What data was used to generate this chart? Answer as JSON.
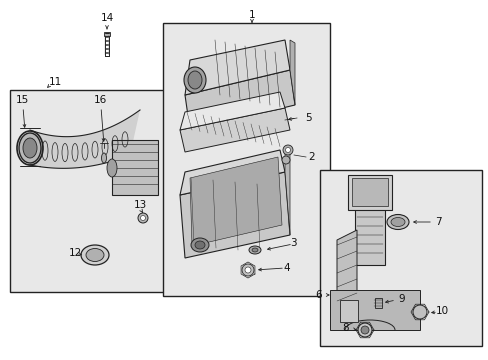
{
  "bg_color": "#ffffff",
  "fig_width": 4.89,
  "fig_height": 3.6,
  "dpi": 100,
  "box_fill": "#e8e8e8",
  "line_color": "#222222",
  "text_color": "#111111",
  "label_fontsize": 7.5
}
